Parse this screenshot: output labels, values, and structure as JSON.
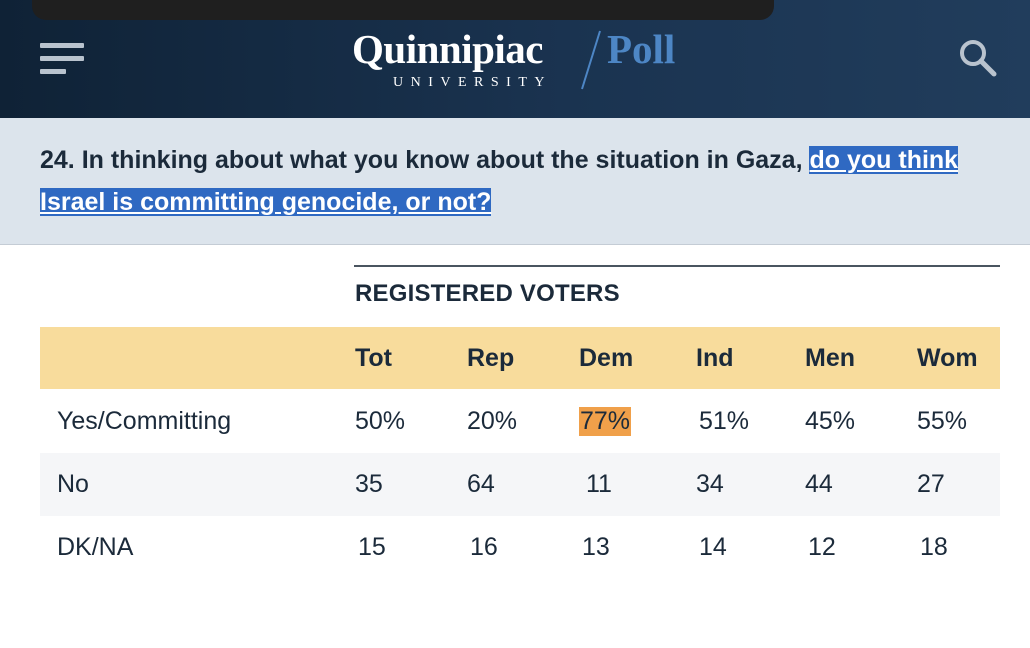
{
  "header": {
    "menu_icon": "hamburger-menu-icon",
    "logo_name": "Quinnipiac",
    "logo_university": "UNIVERSITY",
    "logo_poll": "Poll",
    "search_icon": "search-icon",
    "brand_color": "#1a3350",
    "accent_color": "#4d86c5"
  },
  "question": {
    "prefix": "24. In thinking about what you know about the situation in Gaza, ",
    "link_text": "do you think Israel is committing genocide, or not?",
    "highlight_color": "#2f69c2"
  },
  "table": {
    "group_title": "REGISTERED VOTERS",
    "columns": [
      "Tot",
      "Rep",
      "Dem",
      "Ind",
      "Men",
      "Wom"
    ],
    "header_color": "#f8dc9c",
    "rows": [
      {
        "label": "Yes/Committing",
        "values": [
          "50%",
          "20%",
          "77%",
          "51%",
          "45%",
          "55%"
        ]
      },
      {
        "label": "No",
        "values": [
          "35",
          "64",
          "11",
          "34",
          "44",
          "27"
        ]
      },
      {
        "label": "DK/NA",
        "values": [
          "15",
          "16",
          "13",
          "14",
          "12",
          "18"
        ]
      }
    ],
    "highlighted_cell": {
      "row": 0,
      "col": 2,
      "color": "#f0a04a"
    }
  }
}
